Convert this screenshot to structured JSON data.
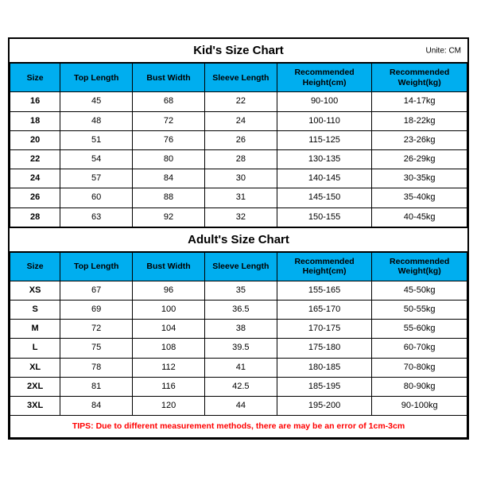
{
  "unit_label": "Unite: CM",
  "kids": {
    "title": "Kid's Size Chart",
    "columns": [
      "Size",
      "Top Length",
      "Bust Width",
      "Sleeve Length",
      "Recommended Height(cm)",
      "Recommended Weight(kg)"
    ],
    "rows": [
      [
        "16",
        "45",
        "68",
        "22",
        "90-100",
        "14-17kg"
      ],
      [
        "18",
        "48",
        "72",
        "24",
        "100-110",
        "18-22kg"
      ],
      [
        "20",
        "51",
        "76",
        "26",
        "115-125",
        "23-26kg"
      ],
      [
        "22",
        "54",
        "80",
        "28",
        "130-135",
        "26-29kg"
      ],
      [
        "24",
        "57",
        "84",
        "30",
        "140-145",
        "30-35kg"
      ],
      [
        "26",
        "60",
        "88",
        "31",
        "145-150",
        "35-40kg"
      ],
      [
        "28",
        "63",
        "92",
        "32",
        "150-155",
        "40-45kg"
      ]
    ]
  },
  "adults": {
    "title": "Adult's Size Chart",
    "columns": [
      "Size",
      "Top Length",
      "Bust Width",
      "Sleeve Length",
      "Recommended Height(cm)",
      "Recommended Weight(kg)"
    ],
    "rows": [
      [
        "XS",
        "67",
        "96",
        "35",
        "155-165",
        "45-50kg"
      ],
      [
        "S",
        "69",
        "100",
        "36.5",
        "165-170",
        "50-55kg"
      ],
      [
        "M",
        "72",
        "104",
        "38",
        "170-175",
        "55-60kg"
      ],
      [
        "L",
        "75",
        "108",
        "39.5",
        "175-180",
        "60-70kg"
      ],
      [
        "XL",
        "78",
        "112",
        "41",
        "180-185",
        "70-80kg"
      ],
      [
        "2XL",
        "81",
        "116",
        "42.5",
        "185-195",
        "80-90kg"
      ],
      [
        "3XL",
        "84",
        "120",
        "44",
        "195-200",
        "90-100kg"
      ]
    ]
  },
  "tips": "TIPS: Due to different measurement methods, there are may be an error of 1cm-3cm",
  "style": {
    "header_bg": "#00aeef",
    "border_color": "#000000",
    "tips_color": "#ff0000",
    "background": "#ffffff"
  }
}
